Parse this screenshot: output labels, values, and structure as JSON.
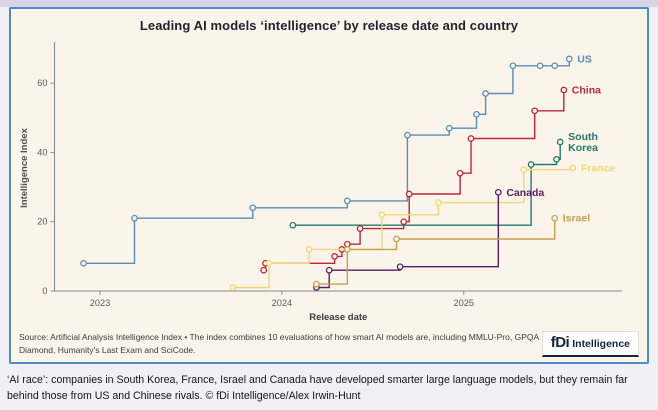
{
  "page": {
    "caption": "‘AI race’: companies in South Korea, France, Israel and Canada have developed smarter large language models, but they remain far behind those from US and Chinese rivals. © fDi Intelligence/Alex Irwin-Hunt"
  },
  "card": {
    "source_text": "Source: Artificial Analysis Intelligence Index • The index combines 10 evaluations of how smart AI models are, including MMLU-Pro, GPQA Diamond, Humanity's Last Exam and SciCode.",
    "logo_fdi": "fDi",
    "logo_intelligence": "Intelligence"
  },
  "chart_data": {
    "type": "line",
    "subtype": "step-after",
    "title": "Leading AI models ‘intelligence’ by release date and country",
    "xlabel": "Release date",
    "ylabel": "Intelligence Index",
    "x_ticks": [
      2023,
      2024,
      2025
    ],
    "y_ticks": [
      0,
      20,
      40,
      60
    ],
    "xlim": [
      2022.75,
      2025.87
    ],
    "ylim": [
      0,
      71
    ],
    "grid": false,
    "legend_position": "end-of-line-labels",
    "axis_color": "#8a8a8a",
    "tick_text_color": "#5a5a5a",
    "marker_fill": "#fbf4ea",
    "series": [
      {
        "name": "US",
        "label_lines": [
          "US"
        ],
        "color": "#5a8cb8",
        "points": [
          [
            2022.91,
            8
          ],
          [
            2023.19,
            21
          ],
          [
            2023.84,
            24
          ],
          [
            2024.36,
            26
          ],
          [
            2024.69,
            45
          ],
          [
            2024.92,
            47
          ],
          [
            2025.07,
            51
          ],
          [
            2025.12,
            57
          ],
          [
            2025.27,
            65
          ],
          [
            2025.42,
            65
          ],
          [
            2025.5,
            65
          ],
          [
            2025.58,
            67
          ]
        ]
      },
      {
        "name": "China",
        "label_lines": [
          "China"
        ],
        "color": "#b82837",
        "points": [
          [
            2023.9,
            6
          ],
          [
            2023.91,
            8
          ],
          [
            2024.29,
            10
          ],
          [
            2024.33,
            12
          ],
          [
            2024.36,
            13.5
          ],
          [
            2024.43,
            18
          ],
          [
            2024.67,
            20
          ],
          [
            2024.7,
            28
          ],
          [
            2024.98,
            34
          ],
          [
            2025.04,
            44
          ],
          [
            2025.39,
            52
          ],
          [
            2025.55,
            58
          ]
        ]
      },
      {
        "name": "South Korea",
        "label_lines": [
          "South",
          "Korea"
        ],
        "color": "#26766b",
        "points": [
          [
            2024.06,
            19
          ],
          [
            2025.37,
            36.5
          ],
          [
            2025.51,
            38
          ],
          [
            2025.53,
            43
          ]
        ]
      },
      {
        "name": "France",
        "label_lines": [
          "France"
        ],
        "color": "#f0d878",
        "points": [
          [
            2023.73,
            1
          ],
          [
            2023.93,
            8
          ],
          [
            2024.15,
            12
          ],
          [
            2024.55,
            22
          ],
          [
            2024.86,
            25.5
          ],
          [
            2025.33,
            35
          ],
          [
            2025.6,
            35.5
          ]
        ]
      },
      {
        "name": "Canada",
        "label_lines": [
          "Canada"
        ],
        "color": "#5c1d5f",
        "points": [
          [
            2024.19,
            1
          ],
          [
            2024.26,
            6
          ],
          [
            2024.65,
            7
          ],
          [
            2025.19,
            28.5
          ]
        ]
      },
      {
        "name": "Israel",
        "label_lines": [
          "Israel"
        ],
        "color": "#c5a14e",
        "points": [
          [
            2024.19,
            2
          ],
          [
            2024.36,
            12
          ],
          [
            2024.63,
            15
          ],
          [
            2025.5,
            21
          ]
        ]
      }
    ]
  }
}
